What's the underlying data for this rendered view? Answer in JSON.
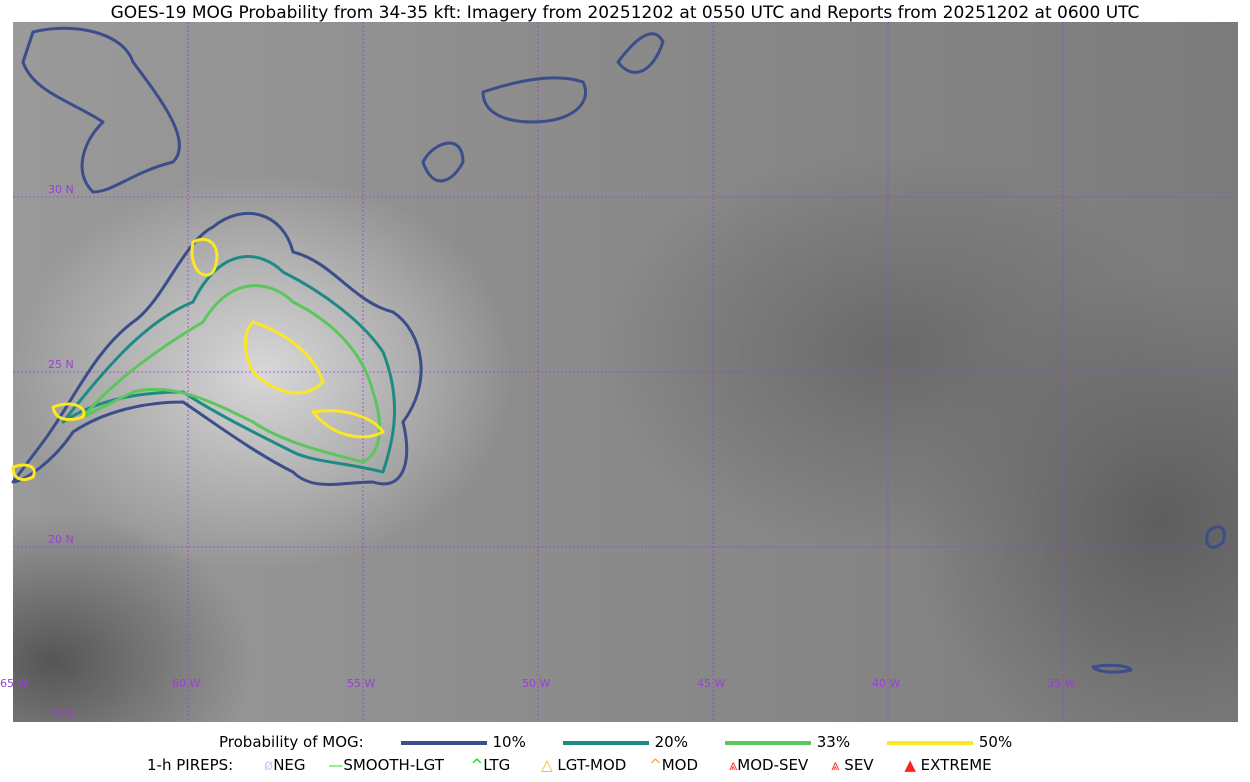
{
  "title": "GOES-19 MOG Probability from 34-35 kft: Imagery from 20251202 at 0550 UTC and Reports from 20251202 at 0600 UTC",
  "map": {
    "lon_labels": [
      "65 W",
      "60 W",
      "55 W",
      "50 W",
      "45 W",
      "40 W",
      "35 W"
    ],
    "lat_labels": [
      "30 N",
      "25 N",
      "20 N",
      "15 N"
    ],
    "grid_color": "#9a3fd6"
  },
  "legend": {
    "prob_title": "Probability of MOG:",
    "levels": [
      {
        "label": "10%",
        "color": "#3b4d8a"
      },
      {
        "label": "20%",
        "color": "#1f8a84"
      },
      {
        "label": "33%",
        "color": "#5cc65c"
      },
      {
        "label": "50%",
        "color": "#fde725"
      }
    ],
    "pirep_title": "1-h PIREPS:",
    "pireps": [
      {
        "label": "NEG",
        "color": "#c8c8ff"
      },
      {
        "label": "SMOOTH-LGT",
        "color": "#22ee22"
      },
      {
        "label": "LTG",
        "color": "#00dd00"
      },
      {
        "label": "LGT-MOD",
        "color": "#ffaa22"
      },
      {
        "label": "MOD",
        "color": "#ffaa22"
      },
      {
        "label": "MOD-SEV",
        "color": "#ff3333"
      },
      {
        "label": "SEV",
        "color": "#ff3333"
      },
      {
        "label": "EXTREME",
        "color": "#ff2222"
      }
    ]
  }
}
